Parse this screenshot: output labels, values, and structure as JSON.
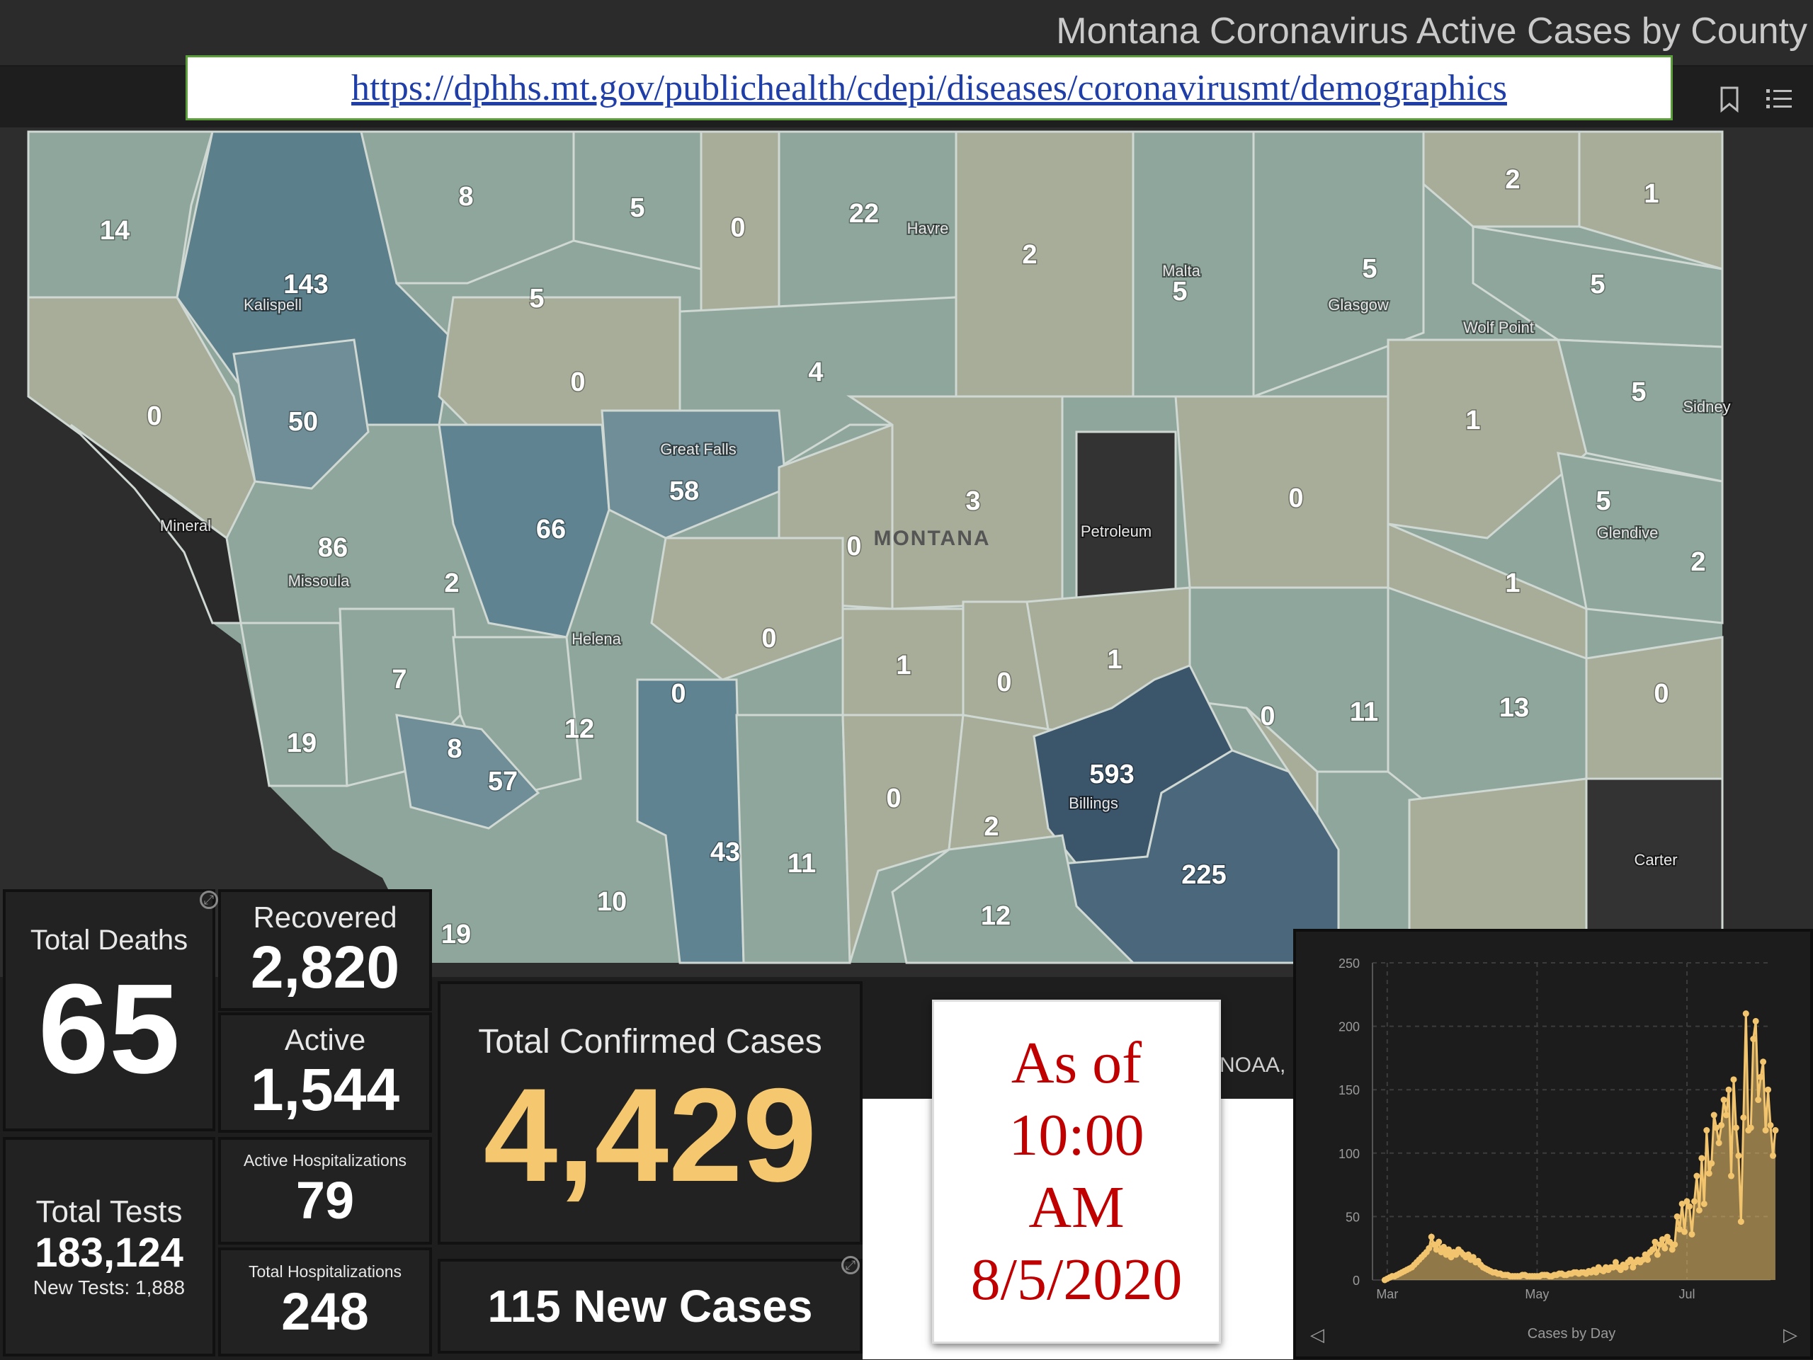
{
  "header": {
    "title": "Montana Coronavirus Active Cases by County",
    "url": "https://dphhs.mt.gov/publichealth/cdepi/diseases/coronavirusmt/demographics",
    "bookmark_icon": "bookmark-icon",
    "list_icon": "list-icon"
  },
  "map": {
    "state_label": "MONTANA",
    "attribution": "NOAA,",
    "cities": [
      "Kalispell",
      "Havre",
      "Malta",
      "Glasgow",
      "Wolf Point",
      "Sidney",
      "Great Falls",
      "Mineral",
      "Missoula",
      "Helena",
      "Petroleum",
      "Glendive",
      "Billings",
      "Carter"
    ],
    "county_counts": [
      "14",
      "8",
      "5",
      "0",
      "22",
      "2",
      "5",
      "2",
      "1",
      "143",
      "5",
      "5",
      "5",
      "0",
      "4",
      "0",
      "50",
      "1",
      "5",
      "58",
      "3",
      "0",
      "86",
      "66",
      "0",
      "5",
      "2",
      "2",
      "1",
      "0",
      "1",
      "0",
      "1",
      "0",
      "7",
      "12",
      "11",
      "13",
      "0",
      "19",
      "8",
      "57",
      "593",
      "0",
      "43",
      "11",
      "2",
      "225",
      "0",
      "10",
      "12",
      "19"
    ]
  },
  "stats": {
    "total_deaths_label": "Total Deaths",
    "total_deaths": "65",
    "recovered_label": "Recovered",
    "recovered": "2,820",
    "active_label": "Active",
    "active": "1,544",
    "active_hosp_label": "Active Hospitalizations",
    "active_hosp": "79",
    "total_hosp_label": "Total Hospitalizations",
    "total_hosp": "248",
    "total_tests_label": "Total Tests",
    "total_tests": "183,124",
    "new_tests": "New Tests: 1,888",
    "confirmed_label": "Total Confirmed Cases",
    "confirmed": "4,429",
    "new_cases": "115 New Cases"
  },
  "asof": {
    "line1": "As of",
    "line2": "10:00",
    "line3": "AM",
    "line4": "8/5/2020"
  },
  "chart_data": {
    "type": "area",
    "title": "",
    "xlabel": "Cases by Day",
    "ylabel": "",
    "ylim": [
      0,
      250
    ],
    "yticks": [
      "0",
      "50",
      "100",
      "150",
      "200",
      "250"
    ],
    "xticks": [
      {
        "label": "Mar",
        "day": 1
      },
      {
        "label": "May",
        "day": 62
      },
      {
        "label": "Jul",
        "day": 123
      }
    ],
    "xlim": [
      -5,
      157
    ],
    "color": "#f2c46d",
    "series": [
      {
        "values": [
          0,
          1,
          2,
          3,
          3,
          4,
          5,
          6,
          7,
          8,
          9,
          10,
          12,
          14,
          16,
          18,
          20,
          22,
          25,
          34,
          28,
          24,
          30,
          22,
          26,
          20,
          24,
          18,
          22,
          20,
          24,
          22,
          20,
          18,
          20,
          16,
          18,
          14,
          15,
          12,
          10,
          9,
          8,
          7,
          6,
          6,
          5,
          5,
          4,
          4,
          4,
          3,
          3,
          3,
          3,
          3,
          4,
          4,
          3,
          3,
          3,
          3,
          3,
          3,
          4,
          4,
          4,
          3,
          3,
          4,
          4,
          5,
          5,
          4,
          4,
          5,
          5,
          6,
          6,
          5,
          6,
          6,
          5,
          7,
          6,
          8,
          6,
          10,
          8,
          7,
          10,
          8,
          10,
          10,
          14,
          10,
          8,
          12,
          10,
          14,
          16,
          10,
          14,
          16,
          14,
          16,
          20,
          16,
          22,
          24,
          30,
          20,
          28,
          32,
          25,
          34,
          30,
          24,
          28,
          50,
          40,
          60,
          38,
          62,
          58,
          36,
          62,
          82,
          55,
          96,
          60,
          118,
          84,
          92,
          130,
          120,
          108,
          122,
          142,
          130,
          150,
          82,
          158,
          120,
          98,
          46,
          128,
          210,
          118,
          120,
          190,
          204,
          142,
          160,
          172,
          118,
          150,
          122,
          98,
          118
        ]
      }
    ]
  },
  "chart_nav": {
    "prev": "◁",
    "next": "▷"
  }
}
